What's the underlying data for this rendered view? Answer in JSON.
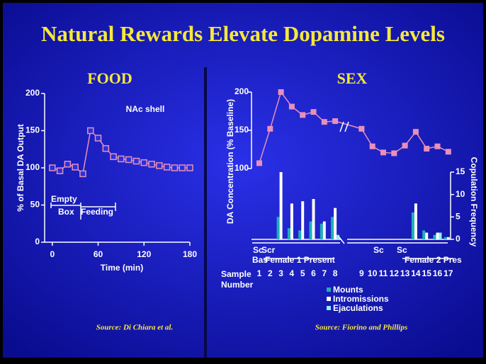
{
  "title": "Natural Rewards Elevate Dopamine Levels",
  "chart_data": [
    {
      "type": "line",
      "title": "FOOD",
      "x_label": "Time (min)",
      "y_label": "% of Basal DA Output",
      "annotations": [
        "NAc shell",
        "Empty",
        "Box",
        "Feeding"
      ],
      "x": [
        0,
        10,
        20,
        30,
        40,
        50,
        60,
        70,
        80,
        90,
        100,
        110,
        120,
        130,
        140,
        150,
        160,
        170,
        180
      ],
      "values": [
        100,
        96,
        105,
        101,
        92,
        150,
        140,
        126,
        115,
        112,
        111,
        109,
        107,
        105,
        103,
        101,
        100,
        100,
        100
      ],
      "color": "#e890b8",
      "xlim": [
        -10,
        180
      ],
      "xticks": [
        0,
        60,
        120,
        180
      ],
      "ylim": [
        0,
        200
      ],
      "yticks": [
        0,
        50,
        100,
        150,
        200
      ],
      "source": "Source: Di Chiara et al."
    },
    {
      "type": "bar-line",
      "title": "SEX",
      "x_label": "Sample Number",
      "y_label": "DA Concentration (% Baseline)",
      "y2_label": "Copulation Frequency",
      "annotations": [
        "Sc",
        "Scr",
        "Bas",
        "Female 1 Present",
        "Sc",
        "Sc",
        "Female 2 Pres"
      ],
      "categories": [
        "1",
        "2",
        "3",
        "4",
        "5",
        "6",
        "7",
        "8",
        "9",
        "10",
        "11",
        "12",
        "13",
        "14",
        "15",
        "16",
        "17"
      ],
      "series": [
        {
          "color": "#e890b8",
          "values": [
            107,
            152,
            200,
            181,
            170,
            174,
            161,
            162,
            152,
            129,
            121,
            120,
            130,
            148,
            126,
            129,
            122
          ]
        },
        {
          "name": "Mounts",
          "color": "#1fb0b8",
          "axis": "y2",
          "values": [
            0,
            0,
            5,
            2.5,
            2,
            4,
            3.5,
            5,
            0,
            0,
            0,
            0,
            0,
            6,
            2,
            1,
            0.5
          ]
        },
        {
          "name": "Intromissions",
          "color": "#ffffff",
          "axis": "y2",
          "values": [
            0,
            0,
            15,
            8,
            8.5,
            9,
            4,
            7,
            0,
            0,
            0,
            0,
            0,
            8,
            1.5,
            1.5,
            0.5
          ]
        },
        {
          "name": "Ejaculations",
          "color": "#8ff0f0",
          "axis": "y2",
          "values": [
            0,
            0,
            0,
            0,
            0,
            0,
            0,
            1,
            0,
            0,
            0,
            0,
            0,
            0,
            0,
            1.5,
            0
          ]
        }
      ],
      "ylim": [
        100,
        200
      ],
      "yticks": [
        100,
        150,
        200
      ],
      "y2lim": [
        0,
        15
      ],
      "y2ticks": [
        0,
        5,
        10,
        15
      ],
      "source": "Source: Fiorino and Phillips"
    }
  ]
}
